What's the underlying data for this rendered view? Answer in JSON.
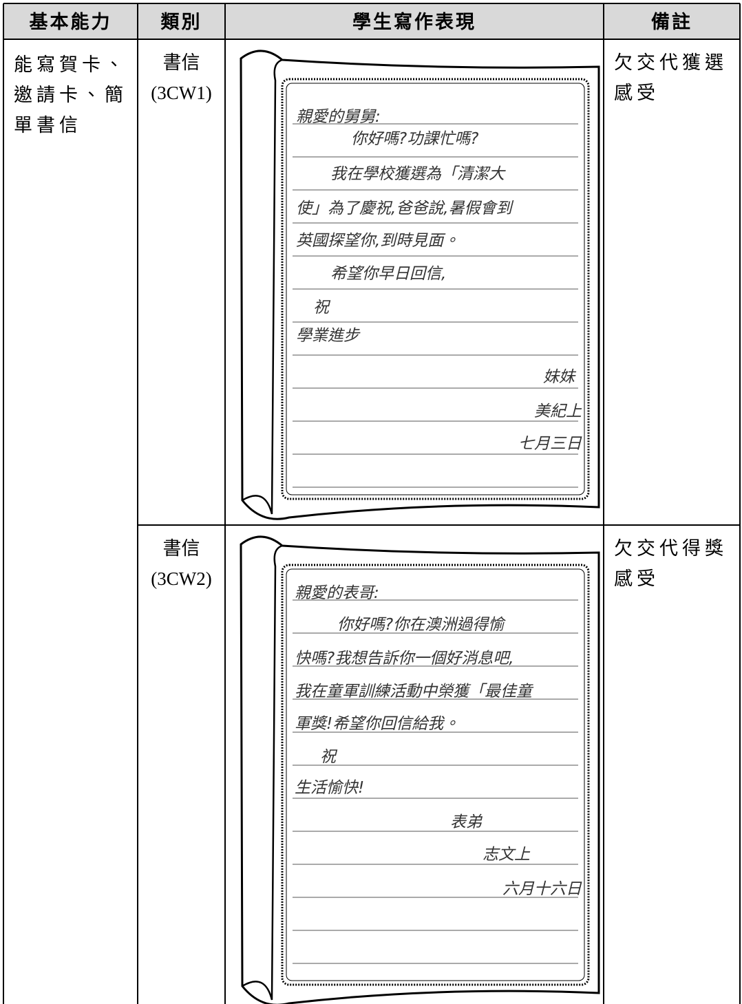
{
  "table": {
    "header": [
      "基本能力",
      "類別",
      "學生寫作表現",
      "備註"
    ],
    "ability": "能寫賀卡、邀請卡、簡單書信",
    "rows": [
      {
        "category": "書信",
        "code": "(3CW1)",
        "letter": [
          "親愛的舅舅:",
          "你好嗎?功課忙嗎?",
          "我在學校獲選為「清潔大",
          "使」為了慶祝,爸爸說,暑假會到",
          "英國探望你,到時見面。",
          "希望你早日回信,",
          "祝",
          "學業進步",
          "妹妹",
          "美紀上",
          "七月三日"
        ],
        "note": "欠交代獲選感受"
      },
      {
        "category": "書信",
        "code": "(3CW2)",
        "letter": [
          "親愛的表哥:",
          "你好嗎?你在澳洲過得愉",
          "快嗎?我想告訴你一個好消息吧,",
          "我在童軍訓練活動中榮獲「最佳童",
          "軍獎!希望你回信給我。",
          "祝",
          "生活愉快!",
          "表弟",
          "志文上",
          "六月十六日"
        ],
        "note": "欠交代得獎感受"
      }
    ]
  }
}
